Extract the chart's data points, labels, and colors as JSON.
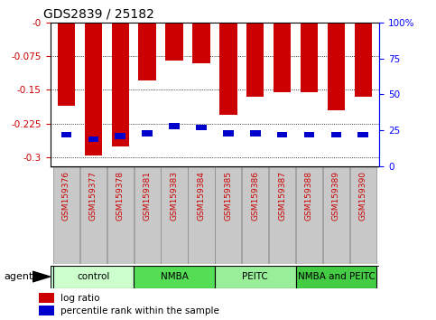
{
  "title": "GDS2839 / 25182",
  "samples": [
    "GSM159376",
    "GSM159377",
    "GSM159378",
    "GSM159381",
    "GSM159383",
    "GSM159384",
    "GSM159385",
    "GSM159386",
    "GSM159387",
    "GSM159388",
    "GSM159389",
    "GSM159390"
  ],
  "log_ratios": [
    -0.185,
    -0.295,
    -0.275,
    -0.13,
    -0.085,
    -0.09,
    -0.205,
    -0.165,
    -0.155,
    -0.155,
    -0.195,
    -0.165
  ],
  "percentile_ranks": [
    22,
    19,
    21,
    23,
    28,
    27,
    23,
    23,
    22,
    22,
    22,
    22
  ],
  "groups": [
    {
      "label": "control",
      "color": "#ccffcc",
      "start": 0,
      "end": 3
    },
    {
      "label": "NMBA",
      "color": "#55dd55",
      "start": 3,
      "end": 6
    },
    {
      "label": "PEITC",
      "color": "#99ee99",
      "start": 6,
      "end": 9
    },
    {
      "label": "NMBA and PEITC",
      "color": "#44cc44",
      "start": 9,
      "end": 12
    }
  ],
  "bar_color": "#cc0000",
  "blue_color": "#0000cc",
  "ylim": [
    0.0,
    -0.32
  ],
  "yticks": [
    0.0,
    -0.075,
    -0.15,
    -0.225,
    -0.3
  ],
  "ytick_labels_left": [
    "-0",
    "-0.075",
    "-0.15",
    "-0.225",
    "-0.3"
  ],
  "ytick_labels_right": [
    "100%",
    "75",
    "50",
    "25",
    "0"
  ],
  "yticks_right_vals": [
    100,
    75,
    50,
    25,
    0
  ],
  "bar_width": 0.65,
  "gray_box_color": "#c8c8c8",
  "group_dividers": [
    3,
    6,
    9
  ]
}
